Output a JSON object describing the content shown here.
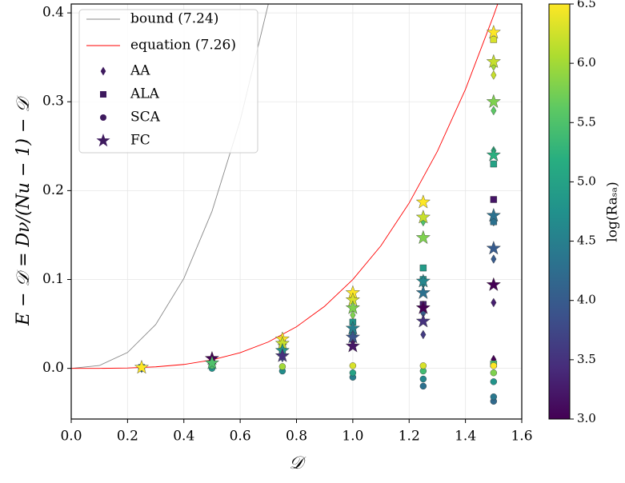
{
  "chart_data": {
    "type": "scatter",
    "xlabel": "𝒟",
    "ylabel": "E − 𝒟 = Dν/(Nu − 1) − 𝒟",
    "xlim": [
      0.0,
      1.6
    ],
    "ylim": [
      -0.057,
      0.41
    ],
    "xticks": [
      {
        "value": 0,
        "label": "0.0"
      },
      {
        "value": 0.2,
        "label": "0.2"
      },
      {
        "value": 0.4,
        "label": "0.4"
      },
      {
        "value": 0.6,
        "label": "0.6"
      },
      {
        "value": 0.8,
        "label": "0.8"
      },
      {
        "value": 1,
        "label": "1.0"
      },
      {
        "value": 1.2,
        "label": "1.2"
      },
      {
        "value": 1.4,
        "label": "1.4"
      },
      {
        "value": 1.6,
        "label": "1.6"
      }
    ],
    "yticks": [
      {
        "value": 0,
        "label": "0.0"
      },
      {
        "value": 0.1,
        "label": "0.1"
      },
      {
        "value": 0.2,
        "label": "0.2"
      },
      {
        "value": 0.3,
        "label": "0.3"
      },
      {
        "value": 0.4,
        "label": "0.4"
      }
    ],
    "grid": true,
    "legend": "upper left",
    "legend_marker_color": "#3e1a5e",
    "lines": [
      {
        "name": "bound (7.24)",
        "color": "#888888",
        "x": [
          0,
          0.1,
          0.2,
          0.3,
          0.4,
          0.5,
          0.6,
          0.7
        ],
        "values": [
          0,
          0.0032,
          0.0179,
          0.0493,
          0.1012,
          0.1768,
          0.2789,
          0.41
        ]
      },
      {
        "name": "equation (7.26)",
        "color": "#ff0000",
        "x": [
          0,
          0.1,
          0.2,
          0.3,
          0.4,
          0.5,
          0.6,
          0.7,
          0.8,
          0.9,
          1.0,
          1.1,
          1.2,
          1.3,
          1.4,
          1.5,
          1.52
        ],
        "values": [
          0,
          0.0,
          0.0004,
          0.0017,
          0.0044,
          0.0095,
          0.0176,
          0.0297,
          0.0468,
          0.0699,
          0.1,
          0.138,
          0.186,
          0.244,
          0.314,
          0.397,
          0.415
        ]
      }
    ],
    "series": [
      {
        "name": "AA",
        "marker": "diamond",
        "x": [
          0.25,
          0.5,
          0.5,
          0.75,
          0.75,
          1.0,
          1.0,
          1.25,
          1.25,
          1.25,
          1.25,
          1.5,
          1.5,
          1.5,
          1.5,
          1.5,
          1.5,
          1.5,
          1.5
        ],
        "values": [
          0.0,
          0.002,
          0.008,
          0.012,
          0.025,
          0.03,
          0.06,
          0.038,
          0.062,
          0.095,
          0.165,
          0.074,
          0.123,
          0.165,
          0.245,
          0.29,
          0.33,
          0.34,
          0.01
        ],
        "c": [
          4.2,
          3.5,
          5.5,
          3.8,
          5.5,
          3.2,
          5.8,
          3.6,
          4.0,
          4.6,
          5.5,
          3.3,
          4.0,
          4.3,
          5.2,
          5.6,
          6.2,
          6.0,
          3.0
        ]
      },
      {
        "name": "ALA",
        "marker": "square",
        "x": [
          0.25,
          0.5,
          0.75,
          0.75,
          1.0,
          1.0,
          1.25,
          1.25,
          1.25,
          1.5,
          1.5,
          1.5,
          1.5,
          1.5
        ],
        "values": [
          0.001,
          0.004,
          0.018,
          0.028,
          0.04,
          0.052,
          0.072,
          0.1,
          0.113,
          0.19,
          0.165,
          0.23,
          0.37,
          0.005
        ],
        "c": [
          5.0,
          4.5,
          4.5,
          5.3,
          4.5,
          4.8,
          3.3,
          4.8,
          4.9,
          3.2,
          4.3,
          5.0,
          6.3,
          5.5
        ]
      },
      {
        "name": "SCA",
        "marker": "circle",
        "x": [
          0.25,
          0.5,
          0.5,
          0.75,
          0.75,
          1.0,
          1.0,
          1.0,
          1.25,
          1.25,
          1.25,
          1.25,
          1.5,
          1.5,
          1.5,
          1.5,
          1.5
        ],
        "values": [
          0.0,
          0.0,
          0.003,
          -0.003,
          0.002,
          -0.01,
          -0.005,
          0.003,
          -0.02,
          -0.012,
          -0.003,
          0.003,
          -0.037,
          -0.032,
          -0.015,
          -0.005,
          0.003
        ],
        "c": [
          4.5,
          4.8,
          5.5,
          4.7,
          6.0,
          4.5,
          5.0,
          6.3,
          4.3,
          4.6,
          5.4,
          6.3,
          4.2,
          4.4,
          4.8,
          5.8,
          6.5
        ]
      },
      {
        "name": "FC",
        "marker": "star",
        "x": [
          0.25,
          0.5,
          0.5,
          0.75,
          0.75,
          0.75,
          0.75,
          1.0,
          1.0,
          1.0,
          1.0,
          1.0,
          1.0,
          1.25,
          1.25,
          1.25,
          1.25,
          1.25,
          1.25,
          1.25,
          1.5,
          1.5,
          1.5,
          1.5,
          1.5,
          1.5,
          1.5
        ],
        "values": [
          0.001,
          0.011,
          0.006,
          0.033,
          0.028,
          0.02,
          0.014,
          0.085,
          0.077,
          0.068,
          0.045,
          0.035,
          0.025,
          0.187,
          0.17,
          0.147,
          0.098,
          0.085,
          0.068,
          0.053,
          0.378,
          0.345,
          0.3,
          0.24,
          0.172,
          0.135,
          0.094
        ],
        "c": [
          6.5,
          3.0,
          5.5,
          6.5,
          6.2,
          4.8,
          3.5,
          6.5,
          6.3,
          5.8,
          4.5,
          3.9,
          3.2,
          6.5,
          6.2,
          5.8,
          4.6,
          4.3,
          3.0,
          3.5,
          6.5,
          6.2,
          5.8,
          5.2,
          4.3,
          4.0,
          3.0
        ]
      }
    ],
    "colorbar": {
      "label": "log(Raₛₐ)",
      "colormap": "viridis",
      "clim": [
        3.0,
        6.5
      ],
      "ticks": [
        {
          "value": 3,
          "label": "3.0"
        },
        {
          "value": 3.5,
          "label": "3.5"
        },
        {
          "value": 4,
          "label": "4.0"
        },
        {
          "value": 4.5,
          "label": "4.5"
        },
        {
          "value": 5,
          "label": "5.0"
        },
        {
          "value": 5.5,
          "label": "5.5"
        },
        {
          "value": 6,
          "label": "6.0"
        },
        {
          "value": 6.5,
          "label": "6.5"
        }
      ]
    }
  }
}
